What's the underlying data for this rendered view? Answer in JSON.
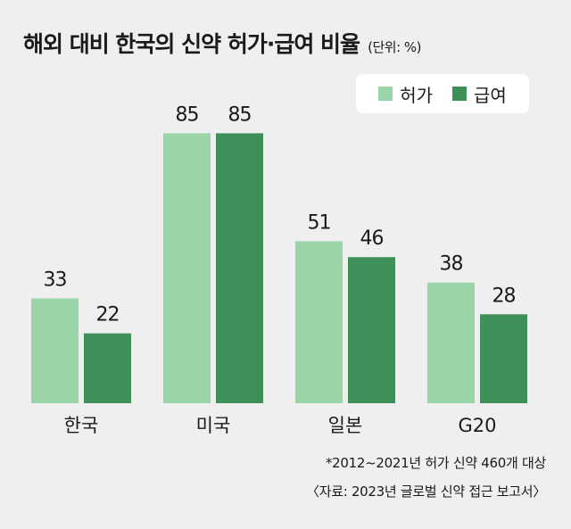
{
  "title": "해외 대비 한국의 신약 허가·급여 비율",
  "unit": "(단위: %)",
  "colors": {
    "approval": "#9bd4a6",
    "reimbursement": "#3e8f58",
    "background": "#efefef"
  },
  "footnote": "*2012~2021년 허가 신약 460개 대상",
  "source": "〈자료: 2023년 글로벌 신약 접근 보고서〉",
  "chart_data": {
    "type": "bar",
    "categories": [
      "한국",
      "미국",
      "일본",
      "G20"
    ],
    "series": [
      {
        "name": "허가",
        "values": [
          33,
          85,
          51,
          38
        ]
      },
      {
        "name": "급여",
        "values": [
          22,
          85,
          46,
          28
        ]
      }
    ],
    "ylim": [
      0,
      100
    ],
    "grid": false,
    "legend": "top-right"
  }
}
